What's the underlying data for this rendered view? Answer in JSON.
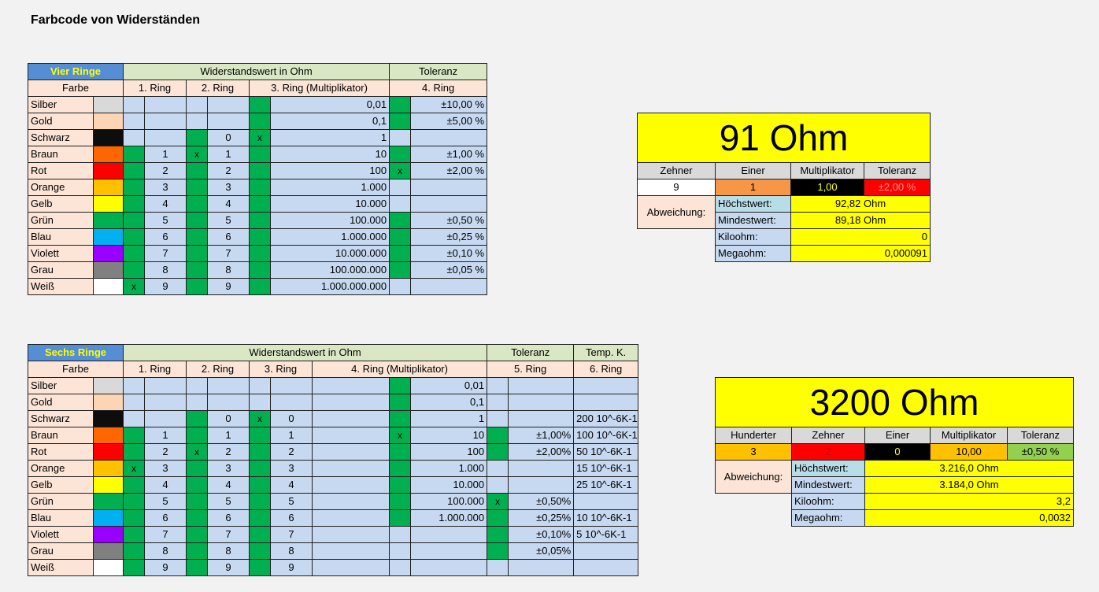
{
  "title": "Farbcode von Widerständen",
  "colors_list": [
    {
      "name": "Silber",
      "hex": "#d9d9d9"
    },
    {
      "name": "Gold",
      "hex": "#fcd5b4"
    },
    {
      "name": "Schwarz",
      "hex": "#0d0d0d"
    },
    {
      "name": "Braun",
      "hex": "#ff6600"
    },
    {
      "name": "Rot",
      "hex": "#ff0000"
    },
    {
      "name": "Orange",
      "hex": "#ffc000"
    },
    {
      "name": "Gelb",
      "hex": "#ffff00"
    },
    {
      "name": "Grün",
      "hex": "#00b050"
    },
    {
      "name": "Blau",
      "hex": "#00b0f0"
    },
    {
      "name": "Violett",
      "hex": "#9900ff"
    },
    {
      "name": "Grau",
      "hex": "#808080"
    },
    {
      "name": "Weiß",
      "hex": "#ffffff"
    }
  ],
  "four": {
    "label": "Vier Ringe",
    "value_header": "Widerstandswert in Ohm",
    "tol_header": "Toleranz",
    "farbe": "Farbe",
    "ring1": "1. Ring",
    "ring2": "2. Ring",
    "ring3": "3. Ring (Multiplikator)",
    "ring4": "4. Ring",
    "rows": [
      {
        "g1": false,
        "x1": "",
        "d1": "",
        "g2": false,
        "x2": "",
        "d2": "",
        "g3": true,
        "x3": "",
        "mult": "0,01",
        "g4": true,
        "x4": "",
        "tol": "±10,00 %"
      },
      {
        "g1": false,
        "x1": "",
        "d1": "",
        "g2": false,
        "x2": "",
        "d2": "",
        "g3": true,
        "x3": "",
        "mult": "0,1",
        "g4": true,
        "x4": "",
        "tol": "±5,00 %"
      },
      {
        "g1": false,
        "x1": "",
        "d1": "",
        "g2": true,
        "x2": "",
        "d2": "0",
        "g3": true,
        "x3": "x",
        "mult": "1",
        "g4": false,
        "x4": "",
        "tol": ""
      },
      {
        "g1": true,
        "x1": "",
        "d1": "1",
        "g2": true,
        "x2": "x",
        "d2": "1",
        "g3": true,
        "x3": "",
        "mult": "10",
        "g4": true,
        "x4": "",
        "tol": "±1,00 %"
      },
      {
        "g1": true,
        "x1": "",
        "d1": "2",
        "g2": true,
        "x2": "",
        "d2": "2",
        "g3": true,
        "x3": "",
        "mult": "100",
        "g4": true,
        "x4": "x",
        "tol": "±2,00 %"
      },
      {
        "g1": true,
        "x1": "",
        "d1": "3",
        "g2": true,
        "x2": "",
        "d2": "3",
        "g3": true,
        "x3": "",
        "mult": "1.000",
        "g4": false,
        "x4": "",
        "tol": ""
      },
      {
        "g1": true,
        "x1": "",
        "d1": "4",
        "g2": true,
        "x2": "",
        "d2": "4",
        "g3": true,
        "x3": "",
        "mult": "10.000",
        "g4": false,
        "x4": "",
        "tol": ""
      },
      {
        "g1": true,
        "x1": "",
        "d1": "5",
        "g2": true,
        "x2": "",
        "d2": "5",
        "g3": true,
        "x3": "",
        "mult": "100.000",
        "g4": true,
        "x4": "",
        "tol": "±0,50 %"
      },
      {
        "g1": true,
        "x1": "",
        "d1": "6",
        "g2": true,
        "x2": "",
        "d2": "6",
        "g3": true,
        "x3": "",
        "mult": "1.000.000",
        "g4": true,
        "x4": "",
        "tol": "±0,25 %"
      },
      {
        "g1": true,
        "x1": "",
        "d1": "7",
        "g2": true,
        "x2": "",
        "d2": "7",
        "g3": true,
        "x3": "",
        "mult": "10.000.000",
        "g4": true,
        "x4": "",
        "tol": "±0,10 %"
      },
      {
        "g1": true,
        "x1": "",
        "d1": "8",
        "g2": true,
        "x2": "",
        "d2": "8",
        "g3": true,
        "x3": "",
        "mult": "100.000.000",
        "g4": true,
        "x4": "",
        "tol": "±0,05 %"
      },
      {
        "g1": true,
        "x1": "x",
        "d1": "9",
        "g2": true,
        "x2": "",
        "d2": "9",
        "g3": true,
        "x3": "",
        "mult": "1.000.000.000",
        "g4": false,
        "x4": "",
        "tol": ""
      }
    ]
  },
  "six": {
    "label": "Sechs Ringe",
    "value_header": "Widerstandswert in Ohm",
    "tol_header": "Toleranz",
    "temp_header": "Temp. K.",
    "farbe": "Farbe",
    "ring1": "1. Ring",
    "ring2": "2. Ring",
    "ring3": "3. Ring",
    "ring4": "4. Ring (Multiplikator)",
    "ring5": "5. Ring",
    "ring6": "6. Ring",
    "rows": [
      {
        "g1": false,
        "x1": "",
        "d1": "",
        "g2": false,
        "x2": "",
        "d2": "",
        "g3": false,
        "x3": "",
        "d3": "",
        "g4": true,
        "x4": "",
        "mult": "0,01",
        "g5": false,
        "x5": "",
        "tol": "",
        "temp": ""
      },
      {
        "g1": false,
        "x1": "",
        "d1": "",
        "g2": false,
        "x2": "",
        "d2": "",
        "g3": false,
        "x3": "",
        "d3": "",
        "g4": true,
        "x4": "",
        "mult": "0,1",
        "g5": false,
        "x5": "",
        "tol": "",
        "temp": ""
      },
      {
        "g1": false,
        "x1": "",
        "d1": "",
        "g2": true,
        "x2": "",
        "d2": "0",
        "g3": true,
        "x3": "x",
        "d3": "0",
        "g4": true,
        "x4": "",
        "mult": "1",
        "g5": false,
        "x5": "",
        "tol": "",
        "temp": "200 10^-6K-1"
      },
      {
        "g1": true,
        "x1": "",
        "d1": "1",
        "g2": true,
        "x2": "",
        "d2": "1",
        "g3": true,
        "x3": "",
        "d3": "1",
        "g4": true,
        "x4": "x",
        "mult": "10",
        "g5": true,
        "x5": "",
        "tol": "±1,00%",
        "temp": "100 10^-6K-1"
      },
      {
        "g1": true,
        "x1": "",
        "d1": "2",
        "g2": true,
        "x2": "x",
        "d2": "2",
        "g3": true,
        "x3": "",
        "d3": "2",
        "g4": true,
        "x4": "",
        "mult": "100",
        "g5": true,
        "x5": "",
        "tol": "±2,00%",
        "temp": "50 10^-6K-1"
      },
      {
        "g1": true,
        "x1": "x",
        "d1": "3",
        "g2": true,
        "x2": "",
        "d2": "3",
        "g3": true,
        "x3": "",
        "d3": "3",
        "g4": true,
        "x4": "",
        "mult": "1.000",
        "g5": false,
        "x5": "",
        "tol": "",
        "temp": "15 10^-6K-1"
      },
      {
        "g1": true,
        "x1": "",
        "d1": "4",
        "g2": true,
        "x2": "",
        "d2": "4",
        "g3": true,
        "x3": "",
        "d3": "4",
        "g4": true,
        "x4": "",
        "mult": "10.000",
        "g5": false,
        "x5": "",
        "tol": "",
        "temp": "25 10^-6K-1"
      },
      {
        "g1": true,
        "x1": "",
        "d1": "5",
        "g2": true,
        "x2": "",
        "d2": "5",
        "g3": true,
        "x3": "",
        "d3": "5",
        "g4": true,
        "x4": "",
        "mult": "100.000",
        "g5": true,
        "x5": "x",
        "tol": "±0,50%",
        "temp": ""
      },
      {
        "g1": true,
        "x1": "",
        "d1": "6",
        "g2": true,
        "x2": "",
        "d2": "6",
        "g3": true,
        "x3": "",
        "d3": "6",
        "g4": true,
        "x4": "",
        "mult": "1.000.000",
        "g5": true,
        "x5": "",
        "tol": "±0,25%",
        "temp": "10 10^-6K-1"
      },
      {
        "g1": true,
        "x1": "",
        "d1": "7",
        "g2": true,
        "x2": "",
        "d2": "7",
        "g3": true,
        "x3": "",
        "d3": "7",
        "g4": false,
        "x4": "",
        "mult": "",
        "g5": true,
        "x5": "",
        "tol": "±0,10%",
        "temp": "5 10^-6K-1"
      },
      {
        "g1": true,
        "x1": "",
        "d1": "8",
        "g2": true,
        "x2": "",
        "d2": "8",
        "g3": true,
        "x3": "",
        "d3": "8",
        "g4": false,
        "x4": "",
        "mult": "",
        "g5": true,
        "x5": "",
        "tol": "±0,05%",
        "temp": ""
      },
      {
        "g1": true,
        "x1": "",
        "d1": "9",
        "g2": true,
        "x2": "",
        "d2": "9",
        "g3": true,
        "x3": "",
        "d3": "9",
        "g4": false,
        "x4": "",
        "mult": "",
        "g5": false,
        "x5": "",
        "tol": "",
        "temp": ""
      }
    ]
  },
  "result4": {
    "value": "91 Ohm",
    "headers": [
      "Zehner",
      "Einer",
      "Multiplikator",
      "Toleranz"
    ],
    "cells": [
      {
        "text": "9",
        "bg": "#ffffff",
        "fg": "#000000"
      },
      {
        "text": "1",
        "bg": "#f79646",
        "fg": "#000000"
      },
      {
        "text": "1,00",
        "bg": "#000000",
        "fg": "#ffff00"
      },
      {
        "text": "±2,00 %",
        "bg": "#ff0000",
        "fg": "#ff9999"
      }
    ],
    "abweichung": "Abweichung:",
    "hoechst_label": "Höchstwert:",
    "hoechst_value": "92,82 Ohm",
    "mindest_label": "Mindestwert:",
    "mindest_value": "89,18 Ohm",
    "kilo_label": "Kiloohm:",
    "kilo_value": "0",
    "mega_label": "Megaohm:",
    "mega_value": "0,000091"
  },
  "result6": {
    "value": "3200 Ohm",
    "headers": [
      "Hunderter",
      "Zehner",
      "Einer",
      "Multiplikator",
      "Toleranz"
    ],
    "cells": [
      {
        "text": "3",
        "bg": "#ffc000",
        "fg": "#000000"
      },
      {
        "text": "2",
        "bg": "#ff0000",
        "fg": "#c00000"
      },
      {
        "text": "0",
        "bg": "#000000",
        "fg": "#ffff00"
      },
      {
        "text": "10,00",
        "bg": "#ffc000",
        "fg": "#000000"
      },
      {
        "text": "±0,50 %",
        "bg": "#92d050",
        "fg": "#000000"
      }
    ],
    "abweichung": "Abweichung:",
    "hoechst_label": "Höchstwert:",
    "hoechst_value": "3.216,0 Ohm",
    "mindest_label": "Mindestwert:",
    "mindest_value": "3.184,0 Ohm",
    "kilo_label": "Kiloohm:",
    "kilo_value": "3,2",
    "mega_label": "Megaohm:",
    "mega_value": "0,0032"
  }
}
